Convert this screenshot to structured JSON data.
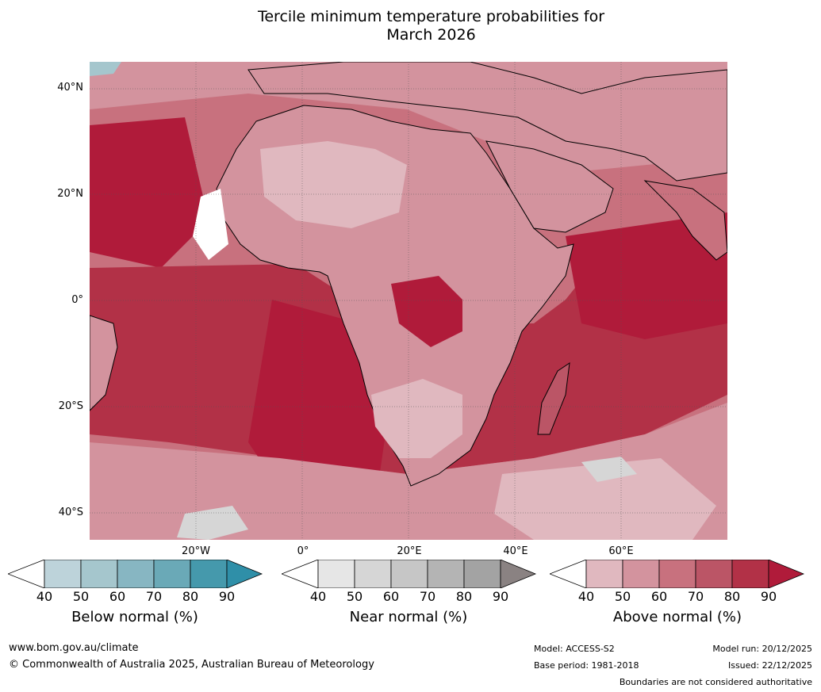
{
  "title": {
    "line1": "Tercile minimum temperature probabilities for",
    "line2": "March 2026"
  },
  "map": {
    "lat_labels": [
      "40°N",
      "20°N",
      "0°",
      "20°S",
      "40°S"
    ],
    "lon_labels": [
      "20°W",
      "0°",
      "20°E",
      "40°E",
      "60°E"
    ]
  },
  "colorbars": {
    "ticks": [
      "40",
      "50",
      "60",
      "70",
      "80",
      "90"
    ],
    "below": {
      "label": "Below normal (%)",
      "colors": [
        "#ffffff",
        "#bdd3da",
        "#a5c6cd",
        "#87b6c2",
        "#6aa9b7",
        "#4599ac",
        "#2f8fa8"
      ]
    },
    "near": {
      "label": "Near normal (%)",
      "colors": [
        "#ffffff",
        "#e6e6e6",
        "#d6d6d6",
        "#c6c6c6",
        "#b4b4b4",
        "#a3a3a3",
        "#8a8282"
      ]
    },
    "above": {
      "label": "Above normal (%)",
      "colors": [
        "#ffffff",
        "#e0b8bf",
        "#d3939e",
        "#c8717e",
        "#bb5566",
        "#b23147",
        "#b01b3a"
      ]
    }
  },
  "footer": {
    "website": "www.bom.gov.au/climate",
    "copyright": "© Commonwealth of Australia 2025, Australian Bureau of Meteorology",
    "model": "Model: ACCESS-S2",
    "base_period": "Base period: 1981-2018",
    "model_run": "Model run: 20/12/2025",
    "issued": "Issued: 22/12/2025",
    "disclaimer": "Boundaries are not considered authoritative"
  }
}
